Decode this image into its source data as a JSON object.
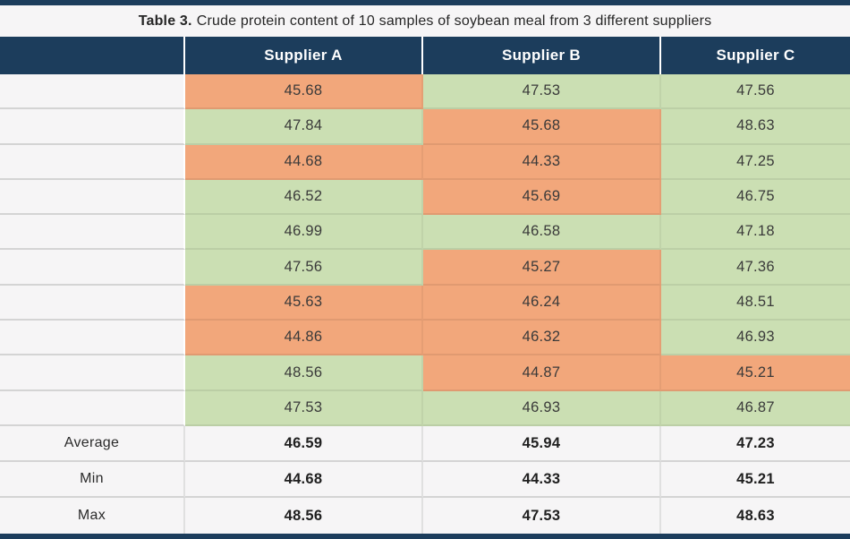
{
  "page": {
    "title_prefix": "Table 3.",
    "title_rest": "Crude protein content of 10 samples of soybean meal from 3 different suppliers"
  },
  "colors": {
    "header_navy": "#1C3D5C",
    "cell_orange": "#F2A77B",
    "cell_green": "#CBDFB3",
    "label_bg": "#F6F5F6",
    "row_border": "#D4D4D4"
  },
  "chart_data": {
    "type": "table",
    "title": "Table 3. Crude protein content of 10 samples of soybean meal from 3 different suppliers",
    "columns": [
      "",
      "Supplier A",
      "Supplier B",
      "Supplier C"
    ],
    "cell_color_meaning": {
      "green": "higher protein value",
      "orange": "lower protein value"
    },
    "rows": [
      {
        "cells": [
          {
            "value": "45.68",
            "color": "orange"
          },
          {
            "value": "47.53",
            "color": "green"
          },
          {
            "value": "47.56",
            "color": "green"
          }
        ]
      },
      {
        "cells": [
          {
            "value": "47.84",
            "color": "green"
          },
          {
            "value": "45.68",
            "color": "orange"
          },
          {
            "value": "48.63",
            "color": "green"
          }
        ]
      },
      {
        "cells": [
          {
            "value": "44.68",
            "color": "orange"
          },
          {
            "value": "44.33",
            "color": "orange"
          },
          {
            "value": "47.25",
            "color": "green"
          }
        ]
      },
      {
        "cells": [
          {
            "value": "46.52",
            "color": "green"
          },
          {
            "value": "45.69",
            "color": "orange"
          },
          {
            "value": "46.75",
            "color": "green"
          }
        ]
      },
      {
        "cells": [
          {
            "value": "46.99",
            "color": "green"
          },
          {
            "value": "46.58",
            "color": "green"
          },
          {
            "value": "47.18",
            "color": "green"
          }
        ]
      },
      {
        "cells": [
          {
            "value": "47.56",
            "color": "green"
          },
          {
            "value": "45.27",
            "color": "orange"
          },
          {
            "value": "47.36",
            "color": "green"
          }
        ]
      },
      {
        "cells": [
          {
            "value": "45.63",
            "color": "orange"
          },
          {
            "value": "46.24",
            "color": "orange"
          },
          {
            "value": "48.51",
            "color": "green"
          }
        ]
      },
      {
        "cells": [
          {
            "value": "44.86",
            "color": "orange"
          },
          {
            "value": "46.32",
            "color": "orange"
          },
          {
            "value": "46.93",
            "color": "green"
          }
        ]
      },
      {
        "cells": [
          {
            "value": "48.56",
            "color": "green"
          },
          {
            "value": "44.87",
            "color": "orange"
          },
          {
            "value": "45.21",
            "color": "orange"
          }
        ]
      },
      {
        "cells": [
          {
            "value": "47.53",
            "color": "green"
          },
          {
            "value": "46.93",
            "color": "green"
          },
          {
            "value": "46.87",
            "color": "green"
          }
        ]
      }
    ],
    "summary_rows": [
      {
        "label": "Average",
        "values": [
          "46.59",
          "45.94",
          "47.23"
        ]
      },
      {
        "label": "Min",
        "values": [
          "44.68",
          "44.33",
          "45.21"
        ]
      },
      {
        "label": "Max",
        "values": [
          "48.56",
          "47.53",
          "48.63"
        ]
      }
    ]
  }
}
